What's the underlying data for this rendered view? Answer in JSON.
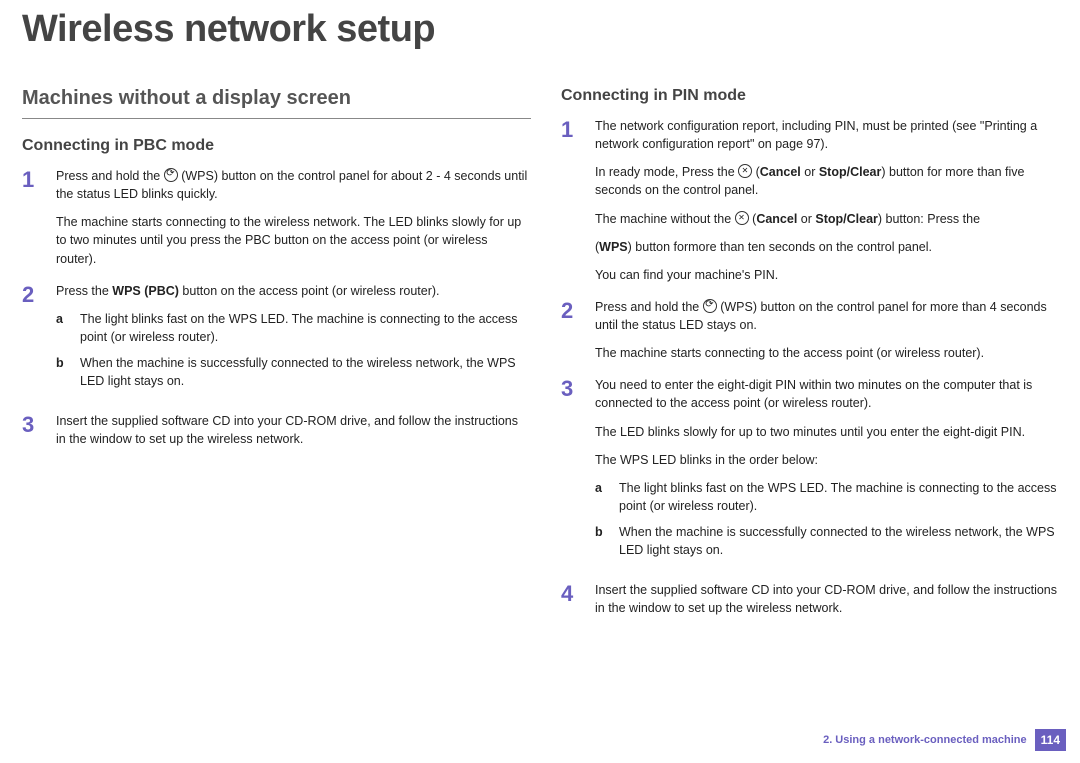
{
  "colors": {
    "accent": "#6a5fbf",
    "text": "#222222",
    "heading": "#444444",
    "rule": "#888888",
    "background": "#ffffff"
  },
  "page_title": "Wireless network setup",
  "left": {
    "section_title": "Machines without a display screen",
    "sub_title": "Connecting in PBC mode",
    "steps": {
      "s1": {
        "p1a": "Press and hold the ",
        "p1b": " (WPS) button on the control panel for about 2 - 4 seconds until the status LED blinks quickly.",
        "p2": "The machine starts connecting to the wireless network. The LED blinks slowly for up to two minutes until you press the PBC button on the access point (or wireless router)."
      },
      "s2": {
        "p1a": "Press the ",
        "p1b": "WPS (PBC)",
        "p1c": " button on the access point (or wireless router).",
        "a": "The light blinks fast on the WPS LED. The machine is connecting to the access point (or wireless router).",
        "b": "When the machine is successfully connected to the wireless network, the WPS LED light stays on."
      },
      "s3": {
        "p1": "Insert the supplied software CD into your CD-ROM drive, and follow the instructions in the window to set up the wireless network."
      }
    }
  },
  "right": {
    "sub_title": "Connecting in PIN mode",
    "steps": {
      "s1": {
        "p1": "The network configuration report, including PIN, must be printed (see \"Printing a network configuration report\" on page 97).",
        "p2a": "In ready mode, Press the ",
        "p2b": " (",
        "p2c": "Cancel",
        "p2d": " or ",
        "p2e": "Stop/Clear",
        "p2f": ") button for more than five seconds on the control panel.",
        "p3a": "The machine without the ",
        "p3b": " (",
        "p3c": "Cancel",
        "p3d": " or ",
        "p3e": "Stop/Clear",
        "p3f": ") button: Press the",
        "p4a": "(",
        "p4b": "WPS",
        "p4c": ")       button formore than ten seconds on the control panel.",
        "p5": "You can find your machine's PIN."
      },
      "s2": {
        "p1a": "Press and hold the ",
        "p1b": " (WPS) button on the control panel for more than 4 seconds until the status LED stays on.",
        "p2": "The machine starts connecting to the access point (or wireless router)."
      },
      "s3": {
        "p1": "You need to enter the eight-digit PIN within two minutes on the computer that is connected to the access point (or wireless router).",
        "p2": "The LED blinks slowly for up to two minutes until you enter the eight-digit PIN.",
        "p3": "The WPS LED blinks in the order below:",
        "a": "The light blinks fast on the WPS LED. The machine is connecting to the access point (or wireless router).",
        "b": "When the machine is successfully connected to the wireless network, the WPS LED light stays on."
      },
      "s4": {
        "p1": "Insert the supplied software CD into your CD-ROM drive, and follow the instructions in the window to set up the wireless network."
      }
    }
  },
  "footer": {
    "chapter": "2.  Using a network-connected machine",
    "page": "114"
  },
  "nums": {
    "n1": "1",
    "n2": "2",
    "n3": "3",
    "n4": "4"
  },
  "letters": {
    "a": "a",
    "b": "b"
  }
}
